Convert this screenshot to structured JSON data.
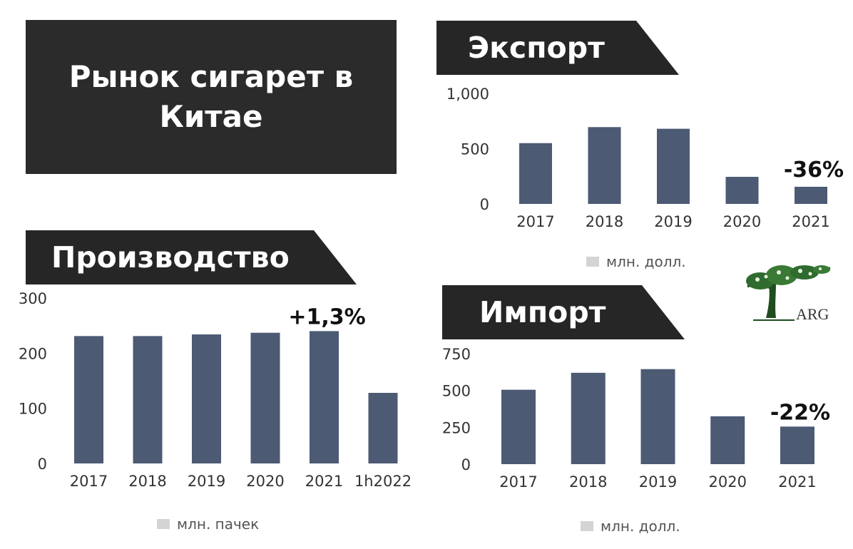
{
  "title": "Рынок сигарет в Китае",
  "sections": {
    "export": {
      "header": "Экспорт"
    },
    "production": {
      "header": "Производство"
    },
    "import": {
      "header": "Импорт"
    }
  },
  "logo": {
    "text": "ARG",
    "icon": "tree-icon"
  },
  "colors": {
    "bar": "#4c5a73",
    "dark": "#262626",
    "legend_swatch": "#d4d4d4"
  },
  "chart_data": [
    {
      "id": "export",
      "type": "bar",
      "categories": [
        "2017",
        "2018",
        "2019",
        "2020",
        "2021"
      ],
      "series": [
        {
          "name": "млн. долл.",
          "values": [
            550,
            695,
            680,
            245,
            155
          ]
        }
      ],
      "ylim": [
        0,
        1000
      ],
      "yticks": [
        0,
        500,
        1000
      ],
      "ytick_labels": [
        "0",
        "500",
        "1,000"
      ],
      "legend": "bottom",
      "annotations": [
        {
          "category": "2021",
          "text": "-36%"
        }
      ]
    },
    {
      "id": "production",
      "type": "bar",
      "categories": [
        "2017",
        "2018",
        "2019",
        "2020",
        "2021",
        "1h2022"
      ],
      "series": [
        {
          "name": "млн. пачек",
          "values": [
            231,
            231,
            234,
            237,
            240,
            128
          ]
        }
      ],
      "ylim": [
        0,
        300
      ],
      "yticks": [
        0,
        100,
        200,
        300
      ],
      "ytick_labels": [
        "0",
        "100",
        "200",
        "300"
      ],
      "legend": "bottom",
      "annotations": [
        {
          "category": "2021",
          "text": "+1,3%"
        }
      ]
    },
    {
      "id": "import",
      "type": "bar",
      "categories": [
        "2017",
        "2018",
        "2019",
        "2020",
        "2021"
      ],
      "series": [
        {
          "name": "млн. долл.",
          "values": [
            505,
            620,
            645,
            325,
            255
          ]
        }
      ],
      "ylim": [
        0,
        750
      ],
      "yticks": [
        0,
        250,
        500,
        750
      ],
      "ytick_labels": [
        "0",
        "250",
        "500",
        "750"
      ],
      "legend": "bottom",
      "annotations": [
        {
          "category": "2021",
          "text": "-22%"
        }
      ]
    }
  ]
}
